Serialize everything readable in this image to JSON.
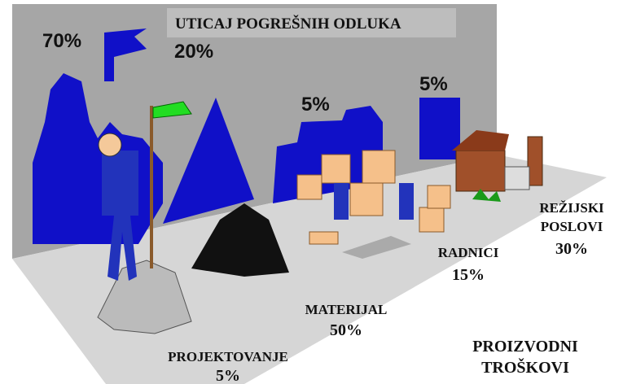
{
  "title": "UTICAJ POGREŠNIH ODLUKA",
  "decision_impact": [
    "70%",
    "20%",
    "5%",
    "5%"
  ],
  "cost_areas": [
    {
      "name": [
        "PROJEKTOVANJE"
      ],
      "share": "5%"
    },
    {
      "name": [
        "MATERIJAL"
      ],
      "share": "50%"
    },
    {
      "name": [
        "RADNICI"
      ],
      "share": "15%"
    },
    {
      "name": [
        "REŽIJSKI",
        "POSLOVI"
      ],
      "share": "30%"
    }
  ],
  "caption": [
    "PROIZVODNI",
    "TROŠKOVI"
  ]
}
